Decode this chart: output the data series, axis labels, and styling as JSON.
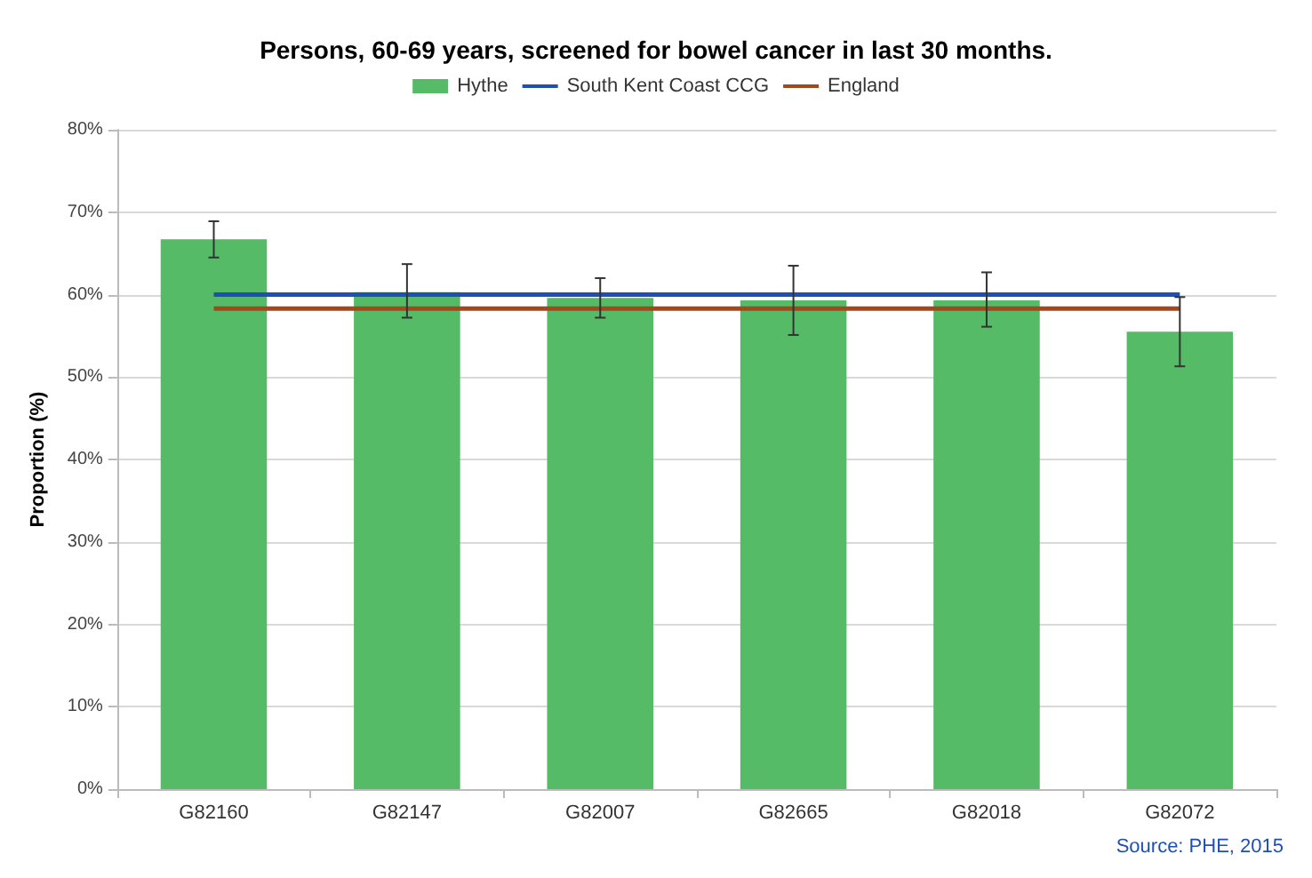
{
  "chart_data": {
    "type": "bar",
    "title": "Persons, 60-69 years, screened for bowel cancer in last 30 months.",
    "ylabel": "Proportion (%)",
    "categories": [
      "G82160",
      "G82147",
      "G82007",
      "G82665",
      "G82018",
      "G82072"
    ],
    "series": [
      {
        "name": "Hythe",
        "color": "#55bb66",
        "values": [
          66.7,
          60.3,
          59.6,
          59.3,
          59.3,
          55.5
        ],
        "errors": [
          [
            64.5,
            68.9
          ],
          [
            57.2,
            63.7
          ],
          [
            57.2,
            62.0
          ],
          [
            55.1,
            63.5
          ],
          [
            56.1,
            62.7
          ],
          [
            51.3,
            59.7
          ]
        ]
      },
      {
        "name": "South Kent Coast CCG",
        "type": "line",
        "color": "#1f4fb5",
        "values": [
          60.0,
          60.0,
          60.0,
          60.0,
          60.0,
          60.0
        ]
      },
      {
        "name": "England",
        "type": "line",
        "color": "#a3481c",
        "values": [
          58.3,
          58.3,
          58.3,
          58.3,
          58.3,
          58.3
        ]
      }
    ],
    "ylim": [
      0,
      80
    ],
    "yticks": [
      {
        "value": 0,
        "label": "0%"
      },
      {
        "value": 10,
        "label": "10%"
      },
      {
        "value": 20,
        "label": "20%"
      },
      {
        "value": 30,
        "label": "30%"
      },
      {
        "value": 40,
        "label": "40%"
      },
      {
        "value": 50,
        "label": "50%"
      },
      {
        "value": 60,
        "label": "60%"
      },
      {
        "value": 70,
        "label": "70%"
      },
      {
        "value": 80,
        "label": "80%"
      }
    ],
    "grid": "y",
    "legend": "top",
    "marker": "none",
    "line_style": "solid",
    "annotations": [
      "Source: PHE, 2015"
    ]
  }
}
